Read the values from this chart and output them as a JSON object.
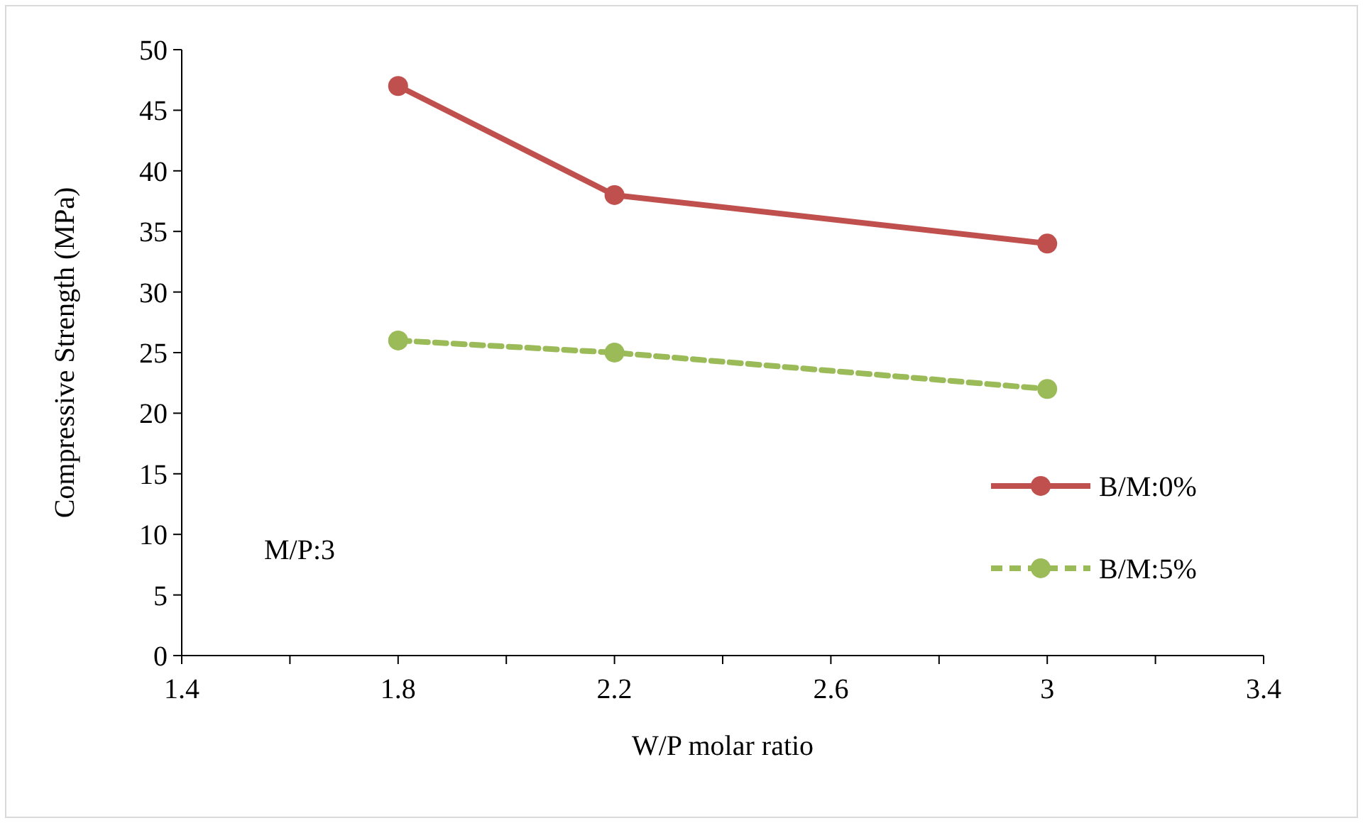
{
  "chart_data": {
    "type": "line",
    "xlabel": "W/P molar ratio",
    "ylabel": "Compressive Strength (MPa)",
    "x": [
      1.8,
      2.2,
      3
    ],
    "series": [
      {
        "name": "B/M:0%",
        "color": "#c0504d",
        "values": [
          47,
          38,
          34
        ],
        "line_style": "solid"
      },
      {
        "name": "B/M:5%",
        "color": "#9bbb59",
        "values": [
          26,
          25,
          22
        ],
        "line_style": "dashed"
      }
    ],
    "xlim": [
      1.4,
      3.4
    ],
    "xticks": [
      1.4,
      {
        "value": 1.6,
        "label": null
      },
      1.8,
      {
        "value": 2.0,
        "label": null
      },
      2.2,
      {
        "value": 2.4,
        "label": null
      },
      2.6,
      {
        "value": 2.8,
        "label": null
      },
      3,
      {
        "value": 3.2,
        "label": null
      },
      3.4
    ],
    "ylim": [
      0,
      50
    ],
    "yticks": [
      0,
      5,
      10,
      15,
      20,
      25,
      30,
      35,
      40,
      45,
      50
    ],
    "grid": false,
    "legend": "right",
    "marker": "circle",
    "annotations": [
      "M/P:3"
    ]
  }
}
